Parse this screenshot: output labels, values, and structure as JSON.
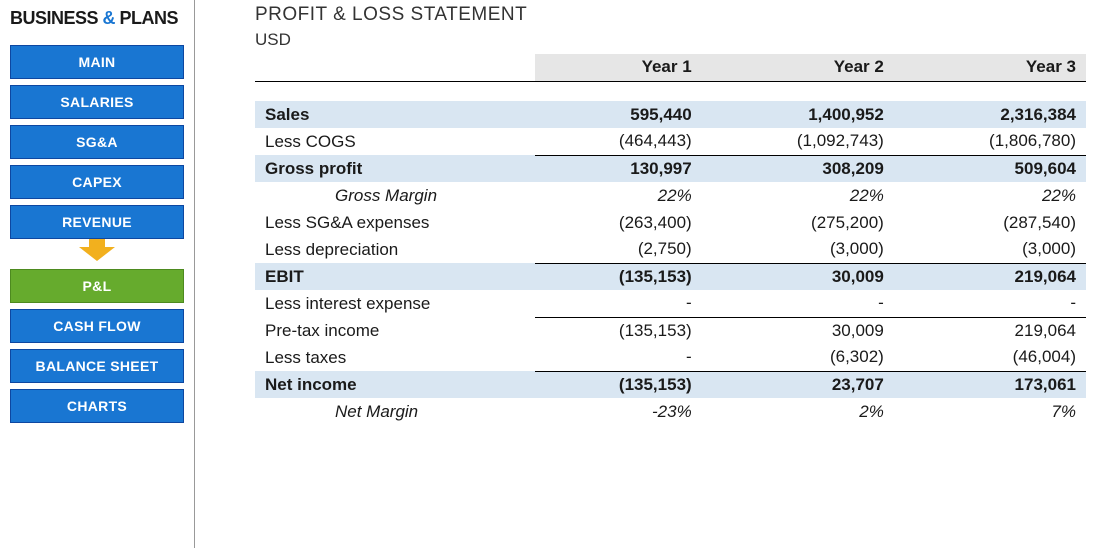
{
  "logo": {
    "pre": "BUSINESS",
    "amp": " & ",
    "post": "PLANS"
  },
  "nav": {
    "main": "MAIN",
    "salaries": "SALARIES",
    "sga": "SG&A",
    "capex": "CAPEX",
    "revenue": "REVENUE",
    "pl": "P&L",
    "cashflow": "CASH FLOW",
    "balance": "BALANCE SHEET",
    "charts": "CHARTS"
  },
  "report": {
    "title": "PROFIT & LOSS STATEMENT",
    "currency": "USD",
    "headers": {
      "y1": "Year 1",
      "y2": "Year 2",
      "y3": "Year 3"
    },
    "rows": {
      "sales": {
        "label": "Sales",
        "y1": "595,440",
        "y2": "1,400,952",
        "y3": "2,316,384"
      },
      "cogs": {
        "label": "Less COGS",
        "y1": "(464,443)",
        "y2": "(1,092,743)",
        "y3": "(1,806,780)"
      },
      "gross": {
        "label": "Gross profit",
        "y1": "130,997",
        "y2": "308,209",
        "y3": "509,604"
      },
      "gmargin": {
        "label": "Gross Margin",
        "y1": "22%",
        "y2": "22%",
        "y3": "22%"
      },
      "sgax": {
        "label": "Less SG&A expenses",
        "y1": "(263,400)",
        "y2": "(275,200)",
        "y3": "(287,540)"
      },
      "dep": {
        "label": "Less depreciation",
        "y1": "(2,750)",
        "y2": "(3,000)",
        "y3": "(3,000)"
      },
      "ebit": {
        "label": "EBIT",
        "y1": "(135,153)",
        "y2": "30,009",
        "y3": "219,064"
      },
      "interest": {
        "label": "Less interest expense",
        "y1": "-",
        "y2": "-",
        "y3": "-"
      },
      "pretax": {
        "label": "Pre-tax income",
        "y1": "(135,153)",
        "y2": "30,009",
        "y3": "219,064"
      },
      "taxes": {
        "label": "Less taxes",
        "y1": "-",
        "y2": "(6,302)",
        "y3": "(46,004)"
      },
      "net": {
        "label": "Net income",
        "y1": "(135,153)",
        "y2": "23,707",
        "y3": "173,061"
      },
      "nmargin": {
        "label": "Net Margin",
        "y1": "-23%",
        "y2": "2%",
        "y3": "7%"
      }
    }
  },
  "colors": {
    "nav_bg": "#1976d2",
    "nav_active_bg": "#66ab2d",
    "arrow": "#f2b01e",
    "header_bg": "#e6e6e6",
    "shaded_row": "#d9e6f2"
  }
}
